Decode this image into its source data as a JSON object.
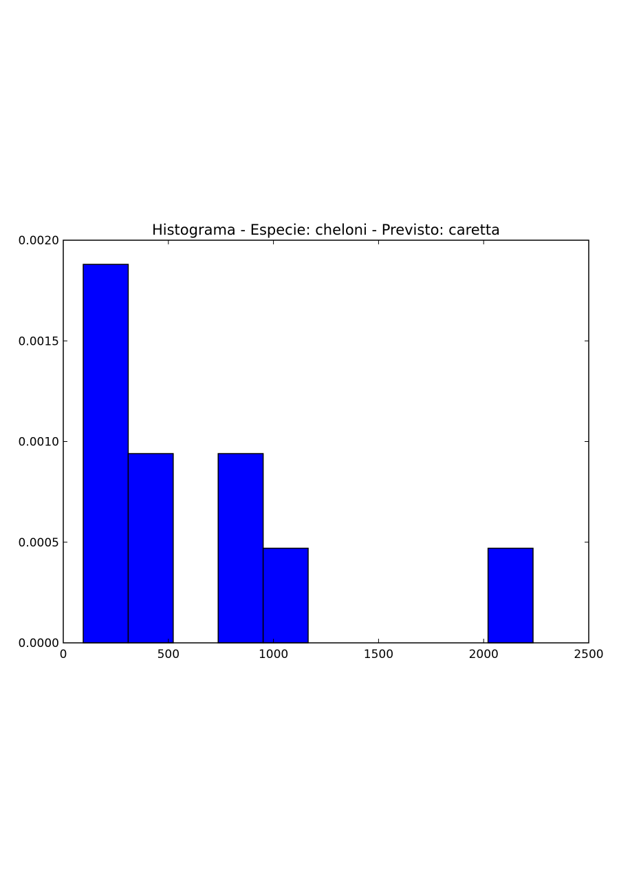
{
  "chart_data": {
    "type": "bar",
    "title": "Histograma - Especie: cheloni - Previsto: caretta",
    "xlabel": "",
    "ylabel": "",
    "xlim": [
      0,
      2500
    ],
    "ylim": [
      0,
      0.002
    ],
    "x_ticks": [
      0,
      500,
      1000,
      1500,
      2000,
      2500
    ],
    "x_tick_labels": [
      "0",
      "500",
      "1000",
      "1500",
      "2000",
      "2500"
    ],
    "y_ticks": [
      0,
      0.0005,
      0.001,
      0.0015,
      0.002
    ],
    "y_tick_labels": [
      "0.0000",
      "0.0005",
      "0.0010",
      "0.0015",
      "0.0020"
    ],
    "grid": false,
    "bar_color": "#0000ff",
    "bars": [
      {
        "x_start": 95,
        "x_end": 309,
        "value": 0.00188
      },
      {
        "x_start": 309,
        "x_end": 523,
        "value": 0.00094
      },
      {
        "x_start": 737,
        "x_end": 951,
        "value": 0.00094
      },
      {
        "x_start": 951,
        "x_end": 1165,
        "value": 0.00047
      },
      {
        "x_start": 2021,
        "x_end": 2235,
        "value": 0.00047
      }
    ]
  }
}
